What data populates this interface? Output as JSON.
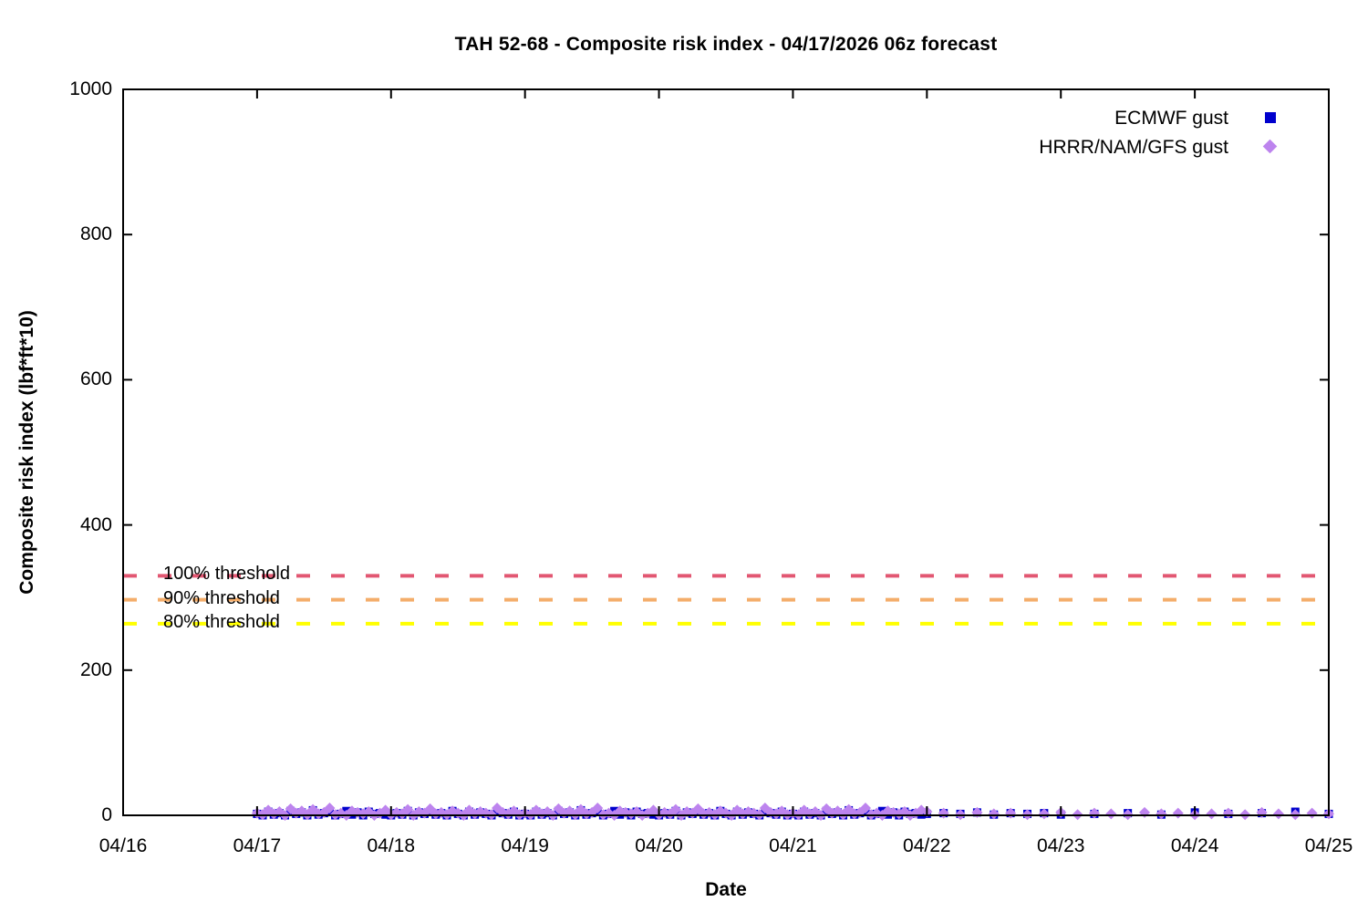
{
  "chart_data": {
    "type": "scatter",
    "title": "TAH 52-68 - Composite risk index - 04/17/2026 06z forecast",
    "xlabel": "Date",
    "ylabel": "Composite risk index (lbf*ft*10)",
    "ylim": [
      0,
      1000
    ],
    "y_ticks": [
      0,
      200,
      400,
      600,
      800,
      1000
    ],
    "x_days": [
      0,
      1,
      2,
      3,
      4,
      5,
      6,
      7,
      8,
      9
    ],
    "x_tick_labels": [
      "04/16",
      "04/17",
      "04/18",
      "04/19",
      "04/20",
      "04/21",
      "04/22",
      "04/23",
      "04/24",
      "04/25"
    ],
    "grid": false,
    "legend_position": "top-right-inside",
    "thresholds": [
      {
        "label": "100% threshold",
        "value": 330,
        "color": "#e25772"
      },
      {
        "label": "90% threshold",
        "value": 297,
        "color": "#f4ad6a"
      },
      {
        "label": "80% threshold",
        "value": 264,
        "color": "#ffff00"
      }
    ],
    "series": [
      {
        "name": "ECMWF gust",
        "marker": "square",
        "color": "#0000cd",
        "segments": [
          {
            "x0": 1.0,
            "dx": 0.0416667,
            "y": [
              2,
              0,
              5,
              1,
              3,
              0,
              6,
              2,
              4,
              0,
              7,
              1,
              3,
              5,
              0,
              2,
              6,
              1,
              4,
              0,
              5,
              2,
              3,
              1,
              0,
              3,
              1,
              6,
              0,
              4,
              2,
              5,
              1,
              3,
              0,
              6,
              2,
              0,
              5,
              1,
              4,
              2,
              0,
              6,
              3,
              1,
              5,
              0,
              2,
              0,
              5,
              1,
              3,
              0,
              6,
              2,
              4,
              0,
              7,
              1,
              3,
              5,
              0,
              2,
              6,
              1,
              4,
              0,
              5,
              2,
              3,
              1,
              0,
              3,
              1,
              6,
              0,
              4,
              2,
              5,
              1,
              3,
              0,
              6,
              2,
              0,
              5,
              1,
              4,
              2,
              0,
              6,
              3,
              1,
              5,
              0,
              2,
              0,
              5,
              1,
              3,
              0,
              6,
              2,
              4,
              0,
              7,
              1,
              3,
              5,
              0,
              2,
              6,
              1,
              4,
              0,
              5,
              2,
              3,
              1,
              2
            ]
          },
          {
            "x0": 6.125,
            "dx": 0.125,
            "y": [
              3,
              2,
              4,
              1,
              3,
              2,
              3,
              1
            ]
          },
          {
            "x0": 7.25,
            "dx": 0.25,
            "y": [
              2,
              3,
              1,
              4,
              2,
              3,
              5,
              2
            ]
          }
        ]
      },
      {
        "name": "HRRR/NAM/GFS gust",
        "marker": "diamond",
        "color": "#bd84ee",
        "segments": [
          {
            "x0": 1.0,
            "dx": 0.0416667,
            "y": [
              3,
              1,
              7,
              2,
              5,
              0,
              9,
              3,
              6,
              1,
              8,
              2,
              4,
              10,
              1,
              3,
              0,
              6,
              4,
              2,
              5,
              0,
              3,
              7,
              1,
              4,
              2,
              8,
              0,
              5,
              3,
              9,
              2,
              4,
              1,
              6,
              3,
              0,
              7,
              2,
              5,
              3,
              1,
              10,
              4,
              2,
              6,
              1,
              3,
              1,
              7,
              2,
              5,
              0,
              9,
              3,
              6,
              1,
              8,
              2,
              4,
              10,
              1,
              3,
              0,
              6,
              4,
              2,
              5,
              0,
              3,
              7,
              1,
              4,
              2,
              8,
              0,
              5,
              3,
              9,
              2,
              4,
              1,
              6,
              3,
              0,
              7,
              2,
              5,
              3,
              1,
              10,
              4,
              2,
              6,
              1,
              3,
              1,
              7,
              2,
              5,
              0,
              9,
              3,
              6,
              1,
              8,
              2,
              4,
              10,
              1,
              3,
              0,
              6,
              4,
              2,
              5,
              0,
              3,
              7,
              5
            ]
          },
          {
            "x0": 6.125,
            "dx": 0.125,
            "y": [
              3,
              1,
              4,
              2,
              3,
              1,
              2,
              4,
              1,
              3,
              2,
              1,
              4,
              2,
              3,
              1,
              2,
              3,
              1,
              4,
              2,
              1,
              3,
              2
            ]
          }
        ]
      }
    ]
  }
}
